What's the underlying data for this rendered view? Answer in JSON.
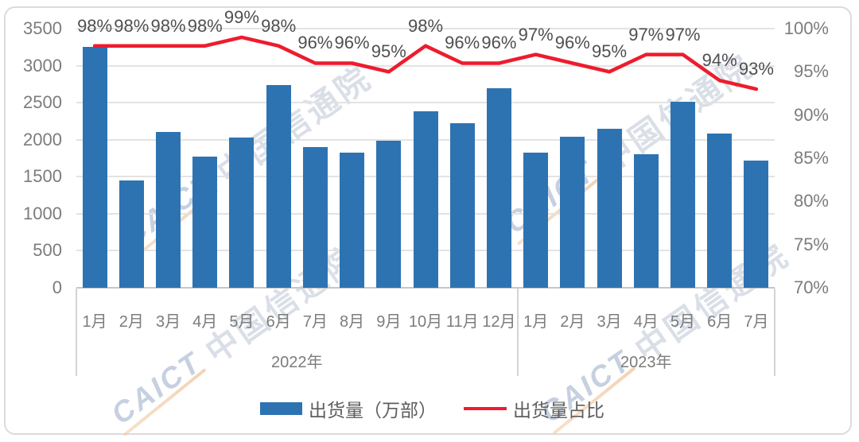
{
  "chart_data": {
    "type": "bar+line",
    "categories": [
      "1月",
      "2月",
      "3月",
      "4月",
      "5月",
      "6月",
      "7月",
      "8月",
      "9月",
      "10月",
      "11月",
      "12月",
      "1月",
      "2月",
      "3月",
      "4月",
      "5月",
      "6月",
      "7月"
    ],
    "year_groups": [
      {
        "label": "2022年",
        "start": 0,
        "count": 12
      },
      {
        "label": "2023年",
        "start": 12,
        "count": 7
      }
    ],
    "series": [
      {
        "name": "出货量（万部）",
        "type": "bar",
        "color": "#2D73B2",
        "values": [
          3250,
          1450,
          2100,
          1770,
          2030,
          2740,
          1900,
          1820,
          1990,
          2380,
          2220,
          2690,
          1830,
          2040,
          2150,
          1800,
          2510,
          2080,
          1720
        ]
      },
      {
        "name": "出货量占比",
        "type": "line",
        "color": "#ED1C2E",
        "values": [
          98,
          98,
          98,
          98,
          99,
          98,
          96,
          96,
          95,
          98,
          96,
          96,
          97,
          96,
          95,
          97,
          97,
          94,
          93
        ],
        "labels": [
          "98%",
          "98%",
          "98%",
          "98%",
          "99%",
          "98%",
          "96%",
          "96%",
          "95%",
          "98%",
          "96%",
          "96%",
          "97%",
          "96%",
          "95%",
          "97%",
          "97%",
          "94%",
          "93%"
        ]
      }
    ],
    "left_axis": {
      "min": 0,
      "max": 3500,
      "step": 500,
      "ticks": [
        "3500",
        "3000",
        "2500",
        "2000",
        "1500",
        "1000",
        "500",
        "0"
      ]
    },
    "right_axis": {
      "min": 70,
      "max": 100,
      "step": 5,
      "ticks": [
        "100%",
        "95%",
        "90%",
        "85%",
        "80%",
        "75%",
        "70%"
      ]
    },
    "grid": true,
    "legend_position": "bottom"
  },
  "legend": {
    "bar_label": "出货量（万部）",
    "line_label": "出货量占比"
  },
  "watermark": {
    "brand": "CAICT",
    "name": "中国信通院"
  },
  "colors": {
    "bar": "#2D73B2",
    "line": "#ED1C2E",
    "grid": "#E3E3E3",
    "axis_text": "#7C7C7C",
    "data_label_text": "#4F4F4F",
    "frame_border": "#DBDBDB"
  }
}
